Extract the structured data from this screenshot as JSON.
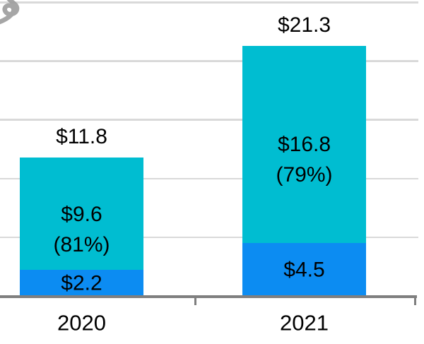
{
  "chart_data": {
    "type": "bar",
    "stacked": true,
    "title": "",
    "categories": [
      "2020",
      "2021"
    ],
    "series": [
      {
        "id": "bottom-segment",
        "color": "#0c8cf2",
        "values": [
          2.2,
          4.5
        ],
        "segment_labels": [
          [
            "$2.2"
          ],
          [
            "$4.5"
          ]
        ]
      },
      {
        "id": "top-segment",
        "color": "#00bdd1",
        "values": [
          9.6,
          16.8
        ],
        "segment_labels": [
          [
            "$9.6",
            "(81%)"
          ],
          [
            "$16.8",
            "(79%)"
          ]
        ]
      }
    ],
    "totals": {
      "values": [
        11.8,
        21.3
      ],
      "labels": [
        "$11.8",
        "$21.3"
      ]
    },
    "ylim": [
      0,
      25
    ],
    "grid_step": 5,
    "grid": true,
    "legend": false,
    "y_axis_tick_labels_visible": false,
    "colors": {
      "gridline": "#d9d9d9",
      "axis": "#7f7f7f",
      "label": "#000000",
      "watermark": "#9a9a9a"
    }
  }
}
